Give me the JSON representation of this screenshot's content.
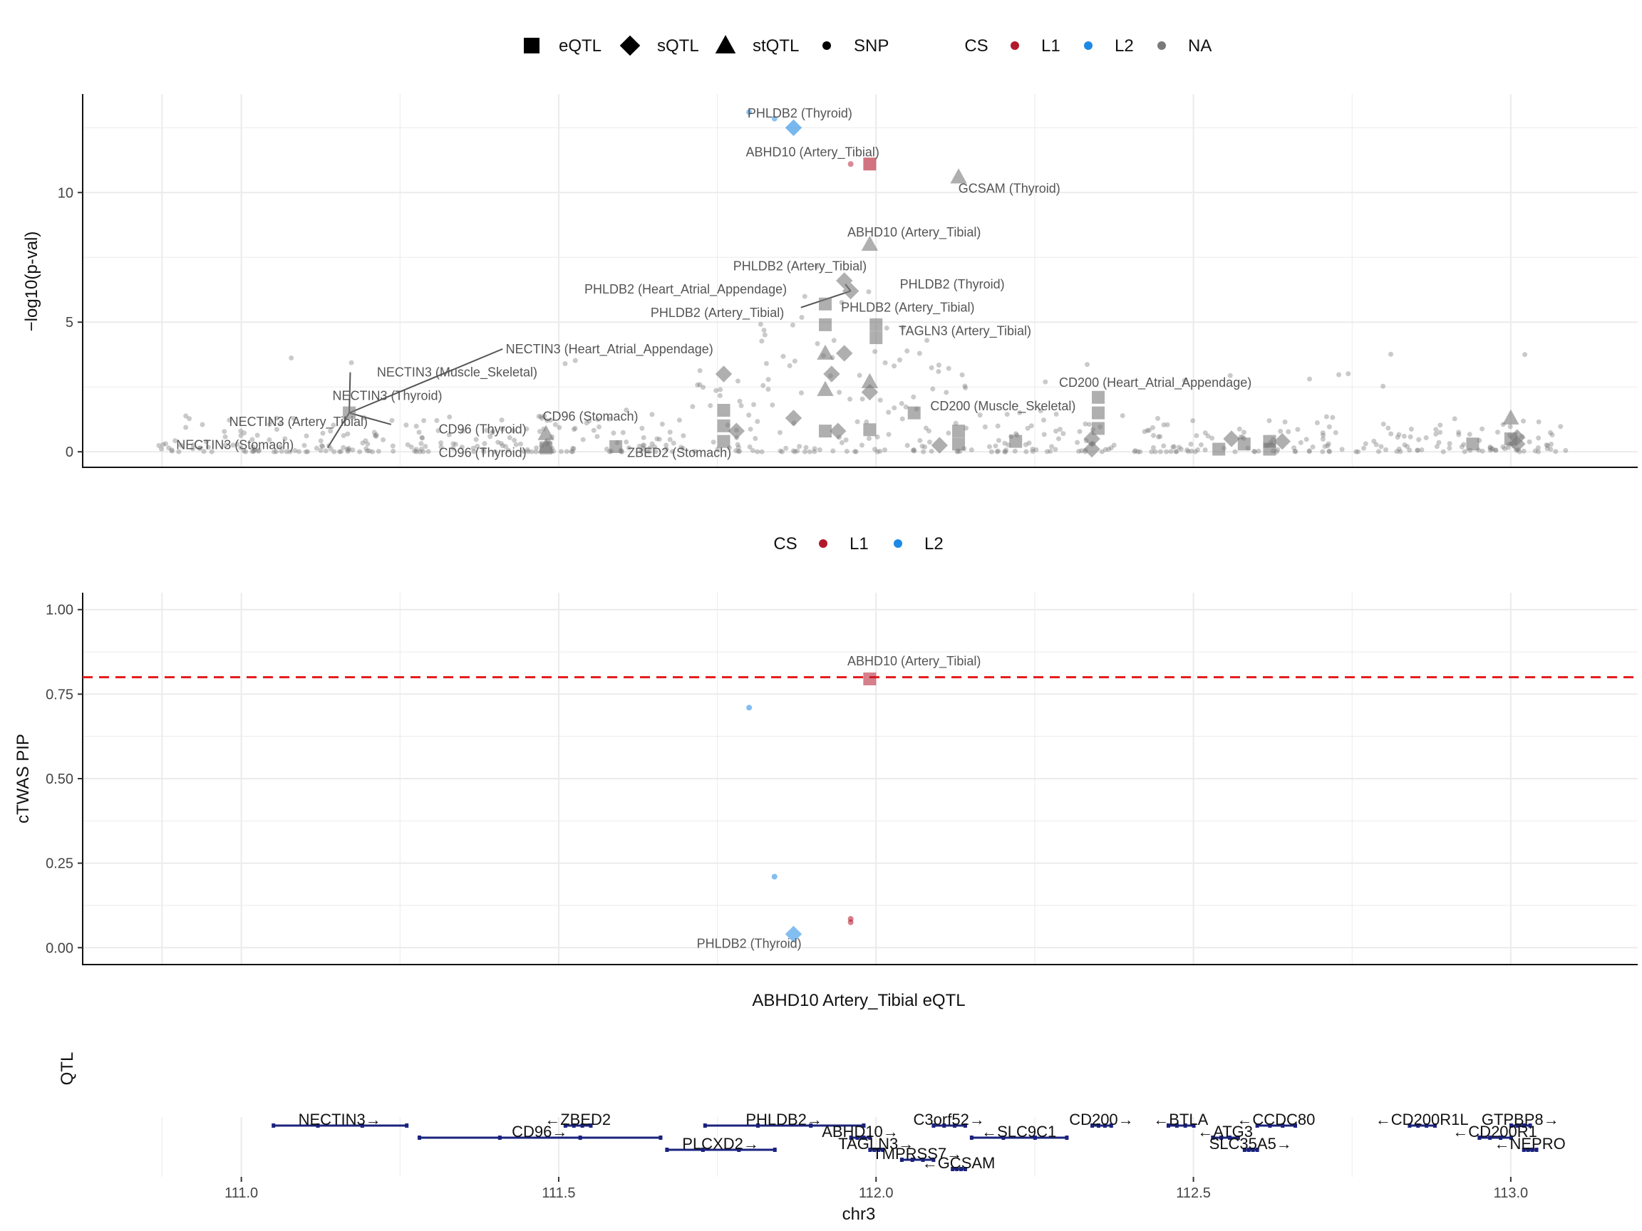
{
  "colors": {
    "L1": "#B2182B",
    "L2": "#1E88E5",
    "NA": "#7A7A7A",
    "threshold": "#E41A1C",
    "gene": "#1A237E",
    "grid": "#EBEBEB"
  },
  "legend_top": {
    "shape_items": [
      {
        "label": "eQTL",
        "shape": "square"
      },
      {
        "label": "sQTL",
        "shape": "diamond"
      },
      {
        "label": "stQTL",
        "shape": "triangle"
      },
      {
        "label": "SNP",
        "shape": "circle"
      }
    ],
    "cs_title": "CS",
    "cs_items": [
      {
        "label": "L1",
        "color": "#B2182B"
      },
      {
        "label": "L2",
        "color": "#1E88E5"
      },
      {
        "label": "NA",
        "color": "#7A7A7A"
      }
    ]
  },
  "legend_mid": {
    "cs_title": "CS",
    "cs_items": [
      {
        "label": "L1",
        "color": "#B2182B"
      },
      {
        "label": "L2",
        "color": "#1E88E5"
      }
    ]
  },
  "chart_data": [
    {
      "type": "scatter",
      "panel": "top",
      "ylabel": "−log10(p-val)",
      "xlim": [
        110.75,
        113.2
      ],
      "ylim": [
        -0.6,
        13.8
      ],
      "yticks": [
        0,
        5,
        10
      ],
      "grid": true,
      "points": [
        {
          "x": 111.17,
          "y": 1.5,
          "shape": "square",
          "cs": "NA"
        },
        {
          "x": 111.48,
          "y": 0.7,
          "shape": "triangle",
          "cs": "NA"
        },
        {
          "x": 111.48,
          "y": 0.2,
          "shape": "triangle",
          "cs": "NA"
        },
        {
          "x": 111.48,
          "y": 0.15,
          "shape": "square",
          "cs": "NA"
        },
        {
          "x": 111.59,
          "y": 0.2,
          "shape": "square",
          "cs": "NA"
        },
        {
          "x": 111.76,
          "y": 1.6,
          "shape": "square",
          "cs": "NA"
        },
        {
          "x": 111.76,
          "y": 1.0,
          "shape": "square",
          "cs": "NA"
        },
        {
          "x": 111.76,
          "y": 0.4,
          "shape": "square",
          "cs": "NA"
        },
        {
          "x": 111.76,
          "y": 3.0,
          "shape": "diamond",
          "cs": "NA"
        },
        {
          "x": 111.78,
          "y": 0.8,
          "shape": "diamond",
          "cs": "NA"
        },
        {
          "x": 111.87,
          "y": 12.5,
          "shape": "diamond",
          "cs": "L2"
        },
        {
          "x": 111.87,
          "y": 1.3,
          "shape": "diamond",
          "cs": "NA"
        },
        {
          "x": 111.92,
          "y": 5.7,
          "shape": "square",
          "cs": "NA"
        },
        {
          "x": 111.92,
          "y": 4.9,
          "shape": "square",
          "cs": "NA"
        },
        {
          "x": 111.92,
          "y": 3.8,
          "shape": "triangle",
          "cs": "NA"
        },
        {
          "x": 111.92,
          "y": 2.4,
          "shape": "triangle",
          "cs": "NA"
        },
        {
          "x": 111.92,
          "y": 0.8,
          "shape": "square",
          "cs": "NA"
        },
        {
          "x": 111.93,
          "y": 3.0,
          "shape": "diamond",
          "cs": "NA"
        },
        {
          "x": 111.94,
          "y": 0.8,
          "shape": "diamond",
          "cs": "NA"
        },
        {
          "x": 111.95,
          "y": 3.8,
          "shape": "diamond",
          "cs": "NA"
        },
        {
          "x": 111.95,
          "y": 6.6,
          "shape": "diamond",
          "cs": "NA"
        },
        {
          "x": 111.96,
          "y": 6.2,
          "shape": "diamond",
          "cs": "NA"
        },
        {
          "x": 111.99,
          "y": 11.1,
          "shape": "square",
          "cs": "L1"
        },
        {
          "x": 111.99,
          "y": 8.0,
          "shape": "triangle",
          "cs": "NA"
        },
        {
          "x": 111.99,
          "y": 2.7,
          "shape": "triangle",
          "cs": "NA"
        },
        {
          "x": 111.99,
          "y": 2.3,
          "shape": "diamond",
          "cs": "NA"
        },
        {
          "x": 111.99,
          "y": 0.85,
          "shape": "square",
          "cs": "NA"
        },
        {
          "x": 112.0,
          "y": 4.9,
          "shape": "square",
          "cs": "NA"
        },
        {
          "x": 112.0,
          "y": 4.4,
          "shape": "square",
          "cs": "NA"
        },
        {
          "x": 112.06,
          "y": 1.5,
          "shape": "square",
          "cs": "NA"
        },
        {
          "x": 112.13,
          "y": 10.6,
          "shape": "triangle",
          "cs": "NA"
        },
        {
          "x": 112.13,
          "y": 0.8,
          "shape": "square",
          "cs": "NA"
        },
        {
          "x": 112.13,
          "y": 0.3,
          "shape": "square",
          "cs": "NA"
        },
        {
          "x": 112.1,
          "y": 0.25,
          "shape": "diamond",
          "cs": "NA"
        },
        {
          "x": 112.22,
          "y": 0.4,
          "shape": "square",
          "cs": "NA"
        },
        {
          "x": 112.35,
          "y": 2.1,
          "shape": "square",
          "cs": "NA"
        },
        {
          "x": 112.35,
          "y": 1.5,
          "shape": "square",
          "cs": "NA"
        },
        {
          "x": 112.35,
          "y": 0.9,
          "shape": "square",
          "cs": "NA"
        },
        {
          "x": 112.34,
          "y": 0.5,
          "shape": "diamond",
          "cs": "NA"
        },
        {
          "x": 112.34,
          "y": 0.1,
          "shape": "diamond",
          "cs": "NA"
        },
        {
          "x": 112.54,
          "y": 0.1,
          "shape": "square",
          "cs": "NA"
        },
        {
          "x": 112.56,
          "y": 0.5,
          "shape": "diamond",
          "cs": "NA"
        },
        {
          "x": 112.58,
          "y": 0.3,
          "shape": "square",
          "cs": "NA"
        },
        {
          "x": 112.62,
          "y": 0.4,
          "shape": "square",
          "cs": "NA"
        },
        {
          "x": 112.62,
          "y": 0.1,
          "shape": "square",
          "cs": "NA"
        },
        {
          "x": 112.64,
          "y": 0.4,
          "shape": "diamond",
          "cs": "NA"
        },
        {
          "x": 112.94,
          "y": 0.3,
          "shape": "square",
          "cs": "NA"
        },
        {
          "x": 113.0,
          "y": 1.3,
          "shape": "triangle",
          "cs": "NA"
        },
        {
          "x": 113.0,
          "y": 0.5,
          "shape": "square",
          "cs": "NA"
        },
        {
          "x": 113.01,
          "y": 0.3,
          "shape": "diamond",
          "cs": "NA"
        },
        {
          "x": 113.01,
          "y": 0.55,
          "shape": "diamond",
          "cs": "NA"
        }
      ],
      "annotations": [
        {
          "text": "PHLDB2 (Thyroid)",
          "x": 111.88,
          "y": 12.9,
          "ax": 111.87,
          "ay": 12.5
        },
        {
          "text": "ABHD10 (Artery_Tibial)",
          "x": 111.9,
          "y": 11.4,
          "ax": 111.99,
          "ay": 11.1
        },
        {
          "text": "GCSAM (Thyroid)",
          "x": 112.21,
          "y": 10.0,
          "ax": 112.13,
          "ay": 10.6
        },
        {
          "text": "ABHD10 (Artery_Tibial)",
          "x": 112.06,
          "y": 8.3,
          "ax": 111.99,
          "ay": 8.0
        },
        {
          "text": "PHLDB2 (Artery_Tibial)",
          "x": 111.88,
          "y": 7.0,
          "ax": 111.95,
          "ay": 6.6
        },
        {
          "text": "PHLDB2 (Thyroid)",
          "x": 112.12,
          "y": 6.3,
          "ax": 111.96,
          "ay": 6.2,
          "line": true
        },
        {
          "text": "PHLDB2 (Heart_Atrial_Appendage)",
          "x": 111.7,
          "y": 6.1,
          "ax": 111.92,
          "ay": 5.7
        },
        {
          "text": "PHLDB2 (Artery_Tibial)",
          "x": 112.05,
          "y": 5.4,
          "ax": 111.96,
          "ay": 6.2,
          "line": true
        },
        {
          "text": "PHLDB2 (Artery_Tibial)",
          "x": 111.75,
          "y": 5.2,
          "ax": 111.92,
          "ay": 4.9
        },
        {
          "text": "TAGLN3 (Artery_Tibial)",
          "x": 112.14,
          "y": 4.5,
          "ax": 112.0,
          "ay": 4.4
        },
        {
          "text": "NECTIN3 (Heart_Atrial_Appendage)",
          "x": 111.58,
          "y": 3.8,
          "ax": 111.17,
          "ay": 1.5,
          "line": true
        },
        {
          "text": "NECTIN3 (Muscle_Skeletal)",
          "x": 111.34,
          "y": 2.9,
          "ax": 111.17,
          "ay": 1.5,
          "line": true
        },
        {
          "text": "CD200 (Heart_Atrial_Appendage)",
          "x": 112.44,
          "y": 2.5,
          "ax": 112.35,
          "ay": 2.1
        },
        {
          "text": "NECTIN3 (Thyroid)",
          "x": 111.23,
          "y": 2.0,
          "ax": 111.17,
          "ay": 1.5
        },
        {
          "text": "CD200 (Muscle_Skeletal)",
          "x": 112.2,
          "y": 1.6,
          "ax": 112.06,
          "ay": 1.5
        },
        {
          "text": "CD96 (Stomach)",
          "x": 111.55,
          "y": 1.2,
          "ax": 111.48,
          "ay": 0.7
        },
        {
          "text": "NECTIN3 (Artery_Tibial)",
          "x": 111.09,
          "y": 1.0,
          "ax": 111.17,
          "ay": 1.5,
          "line": true
        },
        {
          "text": "CD96 (Thyroid)",
          "x": 111.38,
          "y": 0.7,
          "ax": 111.48,
          "ay": 0.7
        },
        {
          "text": "NECTIN3 (Stomach)",
          "x": 110.99,
          "y": 0.1,
          "ax": 111.17,
          "ay": 1.5,
          "line": true
        },
        {
          "text": "CD96 (Thyroid)",
          "x": 111.38,
          "y": -0.2,
          "ax": 111.48,
          "ay": 0.2
        },
        {
          "text": "ZBED2 (Stomach)",
          "x": 111.69,
          "y": -0.2,
          "ax": 111.59,
          "ay": 0.2
        }
      ]
    },
    {
      "type": "scatter",
      "panel": "middle",
      "ylabel": "cTWAS PIP",
      "xlim": [
        110.75,
        113.2
      ],
      "ylim": [
        -0.05,
        1.05
      ],
      "yticks": [
        0.0,
        0.25,
        0.5,
        0.75,
        1.0
      ],
      "yticklabels": [
        "0.00",
        "0.25",
        "0.50",
        "0.75",
        "1.00"
      ],
      "threshold": 0.8,
      "grid": true,
      "points": [
        {
          "x": 111.99,
          "y": 0.795,
          "shape": "square",
          "cs": "L1"
        },
        {
          "x": 111.8,
          "y": 0.71,
          "shape": "circle",
          "cs": "L2"
        },
        {
          "x": 111.84,
          "y": 0.21,
          "shape": "circle",
          "cs": "L2"
        },
        {
          "x": 111.96,
          "y": 0.085,
          "shape": "circle",
          "cs": "L1"
        },
        {
          "x": 111.96,
          "y": 0.075,
          "shape": "circle",
          "cs": "L1"
        },
        {
          "x": 111.87,
          "y": 0.04,
          "shape": "diamond",
          "cs": "L2"
        }
      ],
      "annotations": [
        {
          "text": "ABHD10 (Artery_Tibial)",
          "x": 112.06,
          "y": 0.835,
          "ax": 111.99,
          "ay": 0.795
        },
        {
          "text": "PHLDB2 (Thyroid)",
          "x": 111.8,
          "y": 0.0,
          "ax": 111.87,
          "ay": 0.04
        }
      ]
    }
  ],
  "qtl_panel": {
    "title": "ABHD10 Artery_Tibial eQTL",
    "ylabel": "QTL"
  },
  "gene_track": {
    "xlabel": "chr3",
    "xticks": [
      "111.0",
      "111.5",
      "112.0",
      "112.5",
      "113.0"
    ],
    "genes": [
      {
        "label": "NECTIN3→",
        "start": 111.05,
        "end": 111.26,
        "row": 0
      },
      {
        "label": "←ZBED2",
        "start": 111.51,
        "end": 111.55,
        "row": 0
      },
      {
        "label": "PHLDB2→",
        "start": 111.73,
        "end": 111.98,
        "row": 0
      },
      {
        "label": "C3orf52→",
        "start": 112.09,
        "end": 112.14,
        "row": 0
      },
      {
        "label": "CD200→",
        "start": 112.34,
        "end": 112.37,
        "row": 0
      },
      {
        "label": "←BTLA",
        "start": 112.46,
        "end": 112.5,
        "row": 0
      },
      {
        "label": "←CCDC80",
        "start": 112.6,
        "end": 112.66,
        "row": 0
      },
      {
        "label": "←CD200R1L",
        "start": 112.84,
        "end": 112.88,
        "row": 0
      },
      {
        "label": "GTPBP8→",
        "start": 113.0,
        "end": 113.03,
        "row": 0
      },
      {
        "label": "CD96→",
        "start": 111.28,
        "end": 111.66,
        "row": 1
      },
      {
        "label": "ABHD10→",
        "start": 111.96,
        "end": 111.99,
        "row": 1
      },
      {
        "label": "←SLC9C1",
        "start": 112.15,
        "end": 112.3,
        "row": 1
      },
      {
        "label": "←ATG3",
        "start": 112.53,
        "end": 112.57,
        "row": 1
      },
      {
        "label": "←CD200R1",
        "start": 112.95,
        "end": 113.0,
        "row": 1
      },
      {
        "label": "PLCXD2→",
        "start": 111.67,
        "end": 111.84,
        "row": 2
      },
      {
        "label": "TAGLN3→",
        "start": 111.99,
        "end": 112.01,
        "row": 2
      },
      {
        "label": "SLC35A5→",
        "start": 112.58,
        "end": 112.6,
        "row": 2
      },
      {
        "label": "←NEPRO",
        "start": 113.02,
        "end": 113.04,
        "row": 2
      },
      {
        "label": "TMPRSS7→",
        "start": 112.04,
        "end": 112.09,
        "row": 3
      },
      {
        "label": "←GCSAM",
        "start": 112.12,
        "end": 112.14,
        "row": 4
      }
    ]
  }
}
